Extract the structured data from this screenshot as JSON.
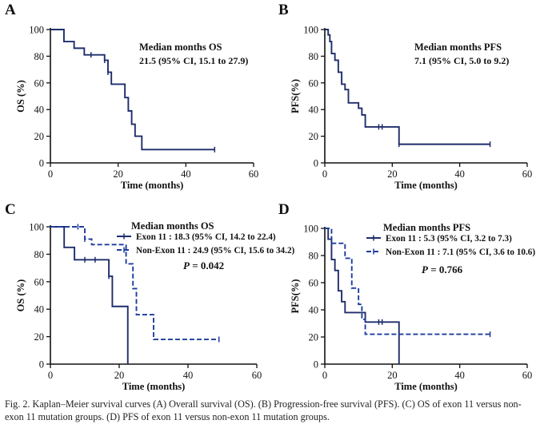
{
  "figure": {
    "caption": "Fig. 2. Kaplan–Meier survival curves (A) Overall survival (OS). (B) Progression-free survival (PFS). (C) OS of exon 11 versus non-exon 11 mutation groups. (D) PFS of exon 11 versus non-exon 11 mutation groups."
  },
  "colors": {
    "solid_series": "#1f2d6b",
    "dashed_series": "#1d3c9e",
    "axis": "#111111"
  },
  "chart_data": [
    {
      "panel_label": "A",
      "type": "line",
      "xlabel": "Time (months)",
      "ylabel": "OS (%)",
      "xlim": [
        0,
        60
      ],
      "ylim": [
        0,
        100
      ],
      "xticks": [
        0,
        20,
        40,
        60
      ],
      "yticks": [
        0,
        20,
        40,
        60,
        80,
        100
      ],
      "annotation_lines": [
        "Median months OS",
        "21.5 (95% CI, 15.1 to 27.9)"
      ],
      "series": [
        {
          "style": "solid",
          "x": [
            0,
            4,
            7,
            10,
            16,
            17,
            18,
            21,
            22,
            23,
            24,
            25,
            27,
            48.5
          ],
          "y": [
            100,
            91,
            86,
            81,
            77,
            68,
            59,
            59,
            49,
            39,
            29,
            20,
            10,
            10
          ],
          "censor_x": [
            12,
            16,
            17,
            48.5
          ]
        }
      ]
    },
    {
      "panel_label": "B",
      "type": "line",
      "xlabel": "Time (months)",
      "ylabel": "PFS(%)",
      "xlim": [
        0,
        60
      ],
      "ylim": [
        0,
        100
      ],
      "xticks": [
        0,
        20,
        40,
        60
      ],
      "yticks": [
        0,
        20,
        40,
        60,
        80,
        100
      ],
      "annotation_lines": [
        "Median months PFS",
        "7.1 (95% CI, 5.0 to 9.2)"
      ],
      "series": [
        {
          "style": "solid",
          "x": [
            0,
            1,
            1.5,
            2,
            3,
            4,
            5,
            6,
            7,
            8,
            10,
            11,
            12,
            22,
            49
          ],
          "y": [
            100,
            96,
            91,
            82,
            77,
            68,
            59,
            55,
            45,
            45,
            41,
            36,
            27,
            14,
            14
          ],
          "censor_x": [
            16,
            17,
            22,
            49
          ]
        }
      ]
    },
    {
      "panel_label": "C",
      "type": "line",
      "xlabel": "Time (months)",
      "ylabel": "OS (%)",
      "xlim": [
        0,
        60
      ],
      "ylim": [
        0,
        100
      ],
      "xticks": [
        0,
        20,
        40,
        60
      ],
      "yticks": [
        0,
        20,
        40,
        60,
        80,
        100
      ],
      "annotation_lines": [
        "Median months OS"
      ],
      "p_value_label": "P",
      "p_value_text": " = 0.042",
      "series": [
        {
          "name": "Exon 11 : 18.3 (95% CI, 14.2 to 22.4)",
          "style": "solid",
          "x": [
            0,
            4,
            7,
            16,
            17,
            18,
            21,
            22.5
          ],
          "y": [
            100,
            85,
            76,
            76,
            64,
            42,
            42,
            0
          ],
          "censor_x": [
            10,
            13,
            17
          ]
        },
        {
          "name": "Non-Exon 11 : 24.9 (95% CI, 15.6 to 34.2)",
          "style": "dashed",
          "x": [
            0,
            10,
            12,
            22,
            24,
            25,
            30,
            49
          ],
          "y": [
            100,
            91,
            87,
            73,
            55,
            36,
            18,
            18
          ],
          "censor_x": [
            8,
            10,
            49
          ]
        }
      ]
    },
    {
      "panel_label": "D",
      "type": "line",
      "xlabel": "Time (months)",
      "ylabel": "PFS(%)",
      "xlim": [
        0,
        60
      ],
      "ylim": [
        0,
        100
      ],
      "xticks": [
        0,
        20,
        40,
        60
      ],
      "yticks": [
        0,
        20,
        40,
        60,
        80,
        100
      ],
      "annotation_lines": [
        "Median months PFS"
      ],
      "p_value_label": "P",
      "p_value_text": " = 0.766",
      "series": [
        {
          "name": "Exon 11 : 5.3 (95% CI, 3.2 to 7.3)",
          "style": "solid",
          "x": [
            0,
            1,
            2,
            3,
            4,
            5,
            6,
            11,
            12,
            22
          ],
          "y": [
            100,
            92,
            77,
            69,
            54,
            46,
            38,
            38,
            31,
            0
          ],
          "censor_x": [
            16,
            17
          ]
        },
        {
          "name": "Non-Exon 11 : 7.1 (95% CI, 3.6 to 10.6)",
          "style": "dashed",
          "x": [
            0,
            2,
            6,
            8,
            10,
            11,
            12,
            49
          ],
          "y": [
            100,
            89,
            78,
            56,
            44,
            33,
            22,
            22
          ],
          "censor_x": [
            49
          ]
        }
      ]
    }
  ]
}
